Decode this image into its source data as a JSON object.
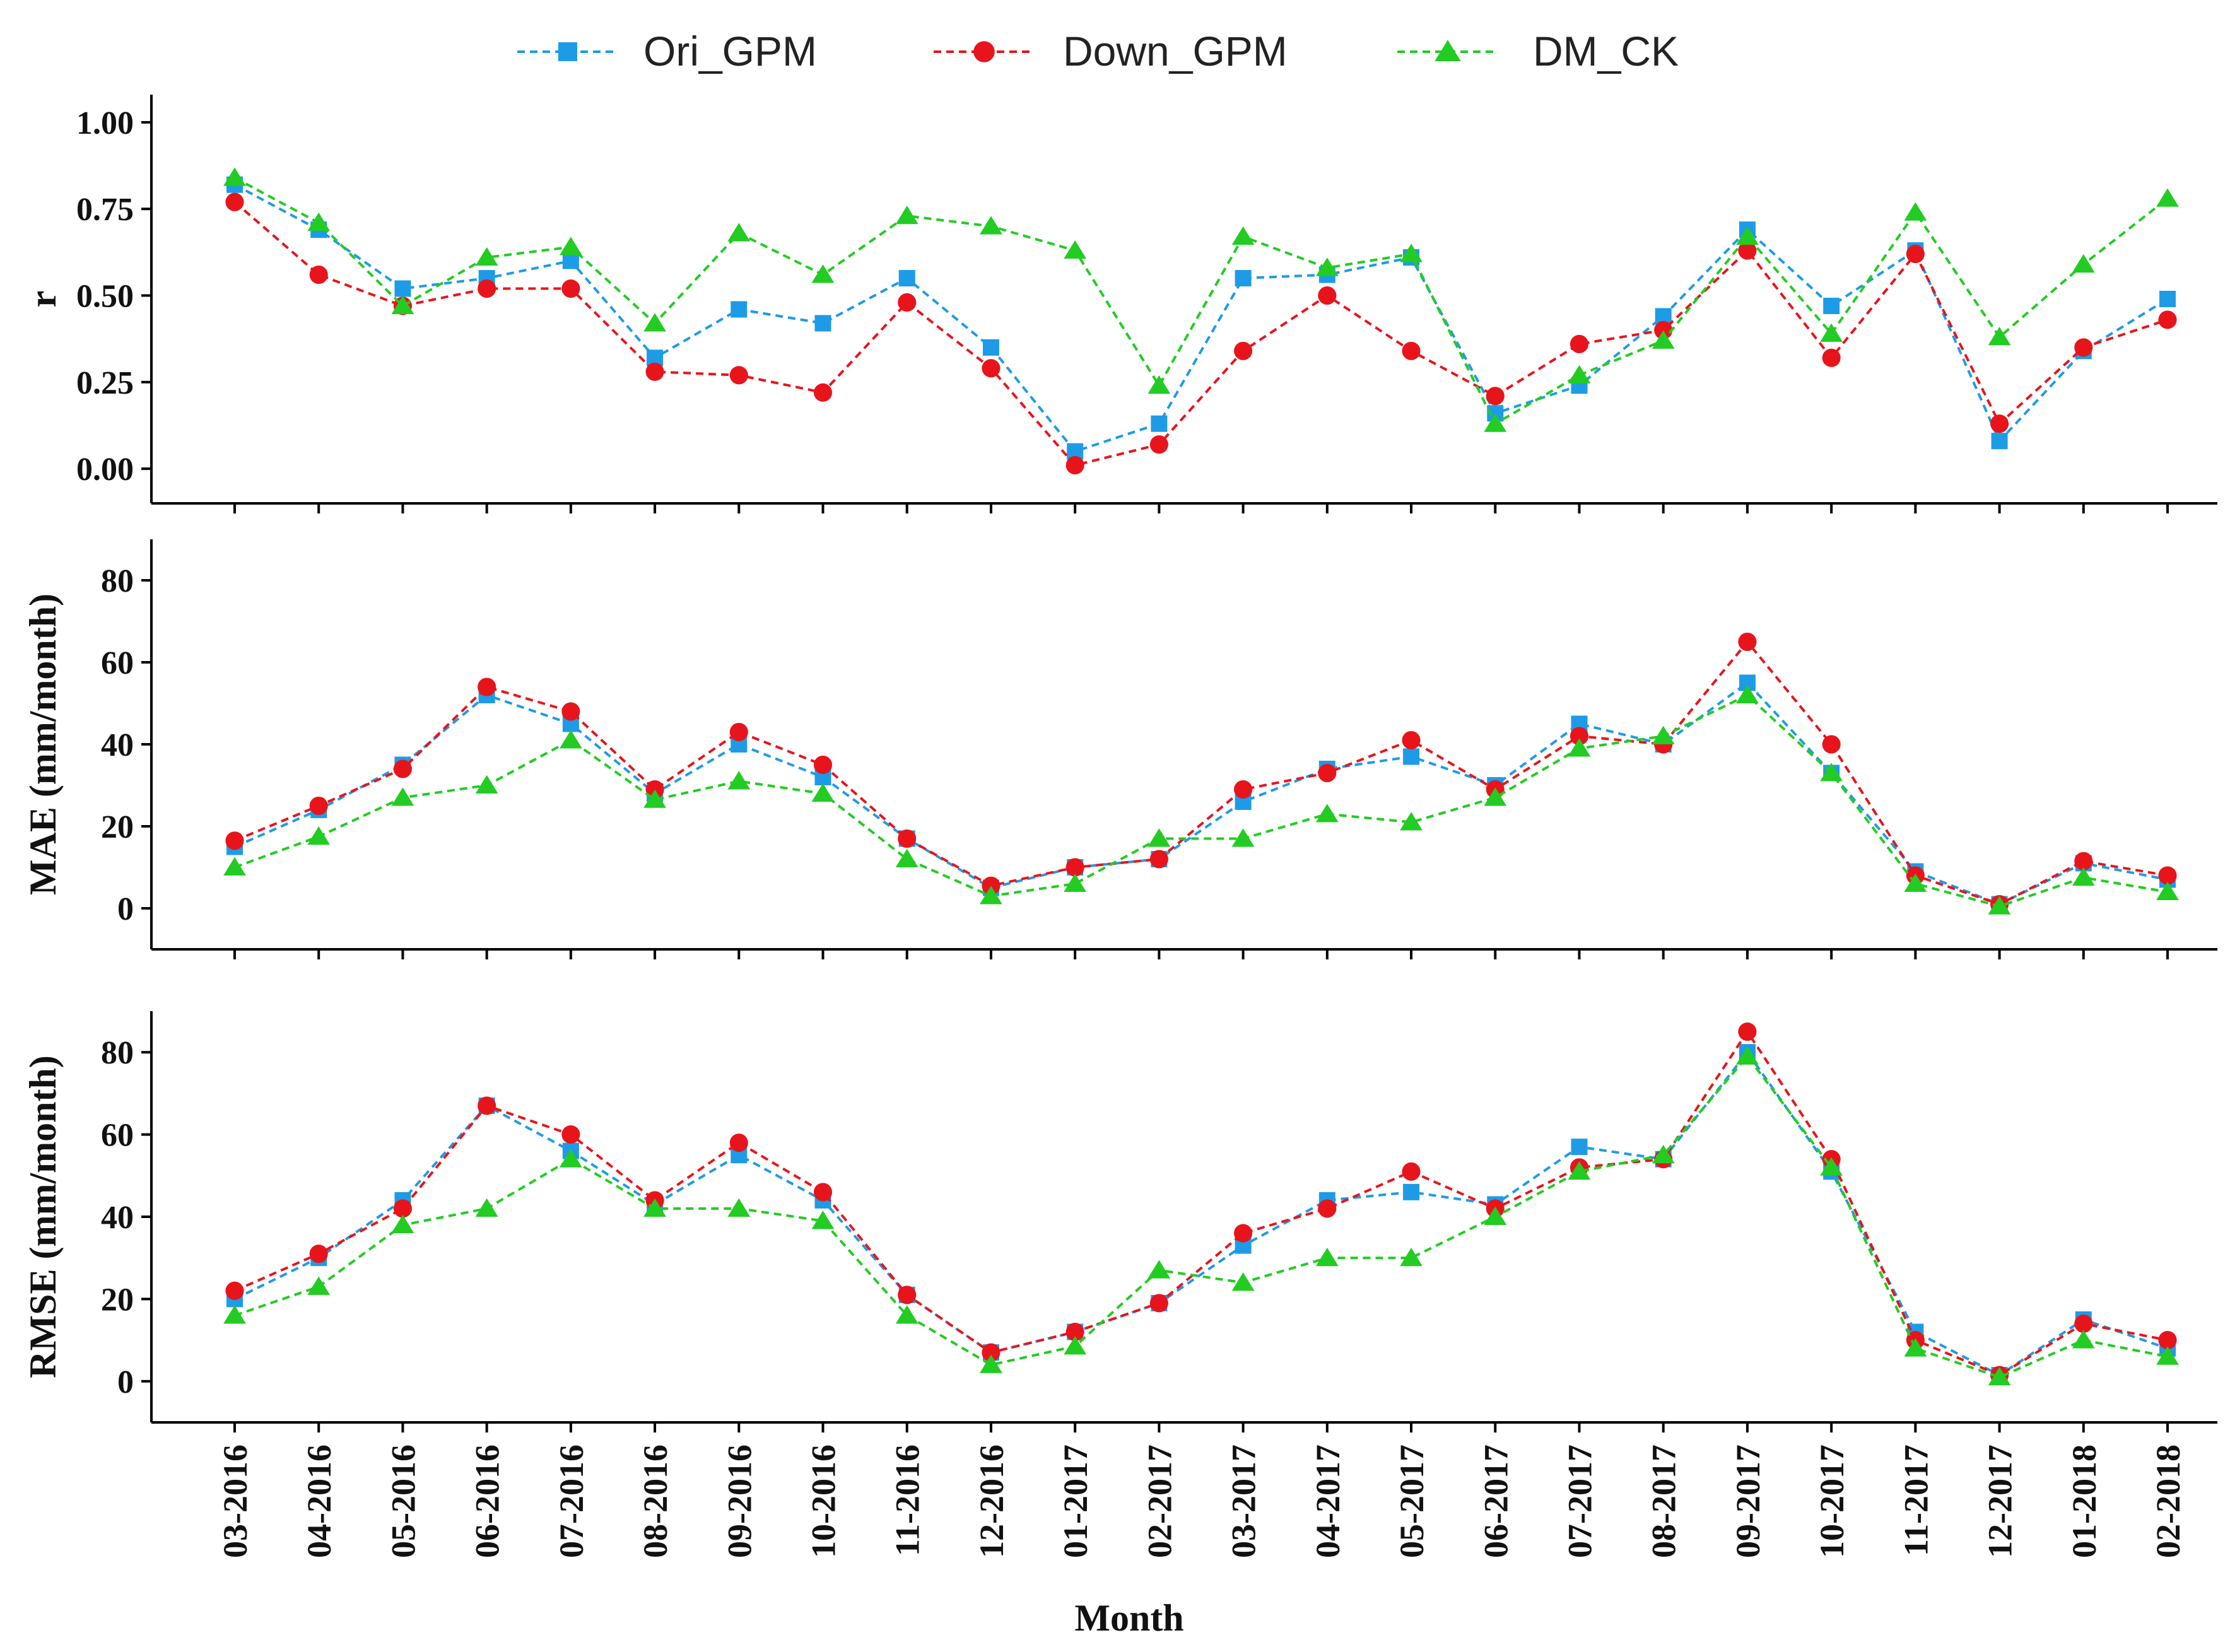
{
  "chart_data": {
    "type": "line",
    "categories": [
      "03-2016",
      "04-2016",
      "05-2016",
      "06-2016",
      "07-2016",
      "08-2016",
      "09-2016",
      "10-2016",
      "11-2016",
      "12-2016",
      "01-2017",
      "02-2017",
      "03-2017",
      "04-2017",
      "05-2017",
      "06-2017",
      "07-2017",
      "08-2017",
      "09-2017",
      "10-2017",
      "11-2017",
      "12-2017",
      "01-2018",
      "02-2018"
    ],
    "xlabel": "Month",
    "legend": {
      "position": "top-center",
      "entries": [
        {
          "name": "Ori_GPM",
          "color": "#1e9be6",
          "marker": "square"
        },
        {
          "name": "Down_GPM",
          "color": "#e8141c",
          "marker": "circle"
        },
        {
          "name": "DM_CK",
          "color": "#22cc22",
          "marker": "triangle"
        }
      ]
    },
    "panels": [
      {
        "id": "r",
        "ylabel": "r",
        "ylim": [
          -0.1,
          1.08
        ],
        "yticks": [
          "0.00",
          "0.25",
          "0.50",
          "0.75",
          "1.00"
        ],
        "ytick_values": [
          0,
          0.25,
          0.5,
          0.75,
          1.0
        ],
        "series": [
          {
            "name": "Ori_GPM",
            "values": [
              0.82,
              0.69,
              0.52,
              0.55,
              0.6,
              0.32,
              0.46,
              0.42,
              0.55,
              0.35,
              0.05,
              0.13,
              0.55,
              0.56,
              0.61,
              0.16,
              0.24,
              0.44,
              0.69,
              0.47,
              0.63,
              0.08,
              0.34,
              0.49
            ]
          },
          {
            "name": "Down_GPM",
            "values": [
              0.77,
              0.56,
              0.47,
              0.52,
              0.52,
              0.28,
              0.27,
              0.22,
              0.48,
              0.29,
              0.01,
              0.07,
              0.34,
              0.5,
              0.34,
              0.21,
              0.36,
              0.4,
              0.63,
              0.32,
              0.62,
              0.13,
              0.35,
              0.43
            ]
          },
          {
            "name": "DM_CK",
            "values": [
              0.84,
              0.71,
              0.47,
              0.61,
              0.64,
              0.42,
              0.68,
              0.56,
              0.73,
              0.7,
              0.63,
              0.24,
              0.67,
              0.58,
              0.62,
              0.13,
              0.27,
              0.37,
              0.67,
              0.39,
              0.74,
              0.38,
              0.59,
              0.78
            ]
          }
        ]
      },
      {
        "id": "mae",
        "ylabel": "MAE (mm/month)",
        "ylim": [
          -10,
          90
        ],
        "yticks": [
          "0",
          "20",
          "40",
          "60",
          "80"
        ],
        "ytick_values": [
          0,
          20,
          40,
          60,
          80
        ],
        "series": [
          {
            "name": "Ori_GPM",
            "values": [
              15,
              24,
              35,
              52,
              45,
              28,
              40,
              32,
              17,
              5,
              10,
              12,
              26,
              34,
              37,
              30,
              45,
              40,
              55,
              33,
              9,
              1,
              11,
              7
            ]
          },
          {
            "name": "Down_GPM",
            "values": [
              16.5,
              25,
              34,
              54,
              48,
              29,
              43,
              35,
              17,
              5.5,
              10,
              12,
              29,
              33,
              41,
              29,
              42,
              40,
              65,
              40,
              8,
              1,
              11.5,
              8
            ]
          },
          {
            "name": "DM_CK",
            "values": [
              10,
              17.5,
              27,
              30,
              41,
              26.5,
              31,
              28,
              12,
              3,
              6,
              17,
              17,
              23,
              21,
              27,
              39,
              42,
              52,
              33,
              6,
              0.5,
              7.5,
              4
            ]
          }
        ]
      },
      {
        "id": "rmse",
        "ylabel": "RMSE (mm/month)",
        "ylim": [
          -10,
          90
        ],
        "yticks": [
          "0",
          "20",
          "40",
          "60",
          "80"
        ],
        "ytick_values": [
          0,
          20,
          40,
          60,
          80
        ],
        "series": [
          {
            "name": "Ori_GPM",
            "values": [
              20,
              30,
              44,
              67,
              56,
              43,
              55,
              44,
              21,
              7,
              12,
              19,
              33,
              44,
              46,
              43,
              57,
              54,
              80,
              51,
              12,
              1.5,
              15,
              8
            ]
          },
          {
            "name": "Down_GPM",
            "values": [
              22,
              31,
              42,
              67,
              60,
              44,
              58,
              46,
              21,
              7,
              12,
              19,
              36,
              42,
              51,
              42,
              52,
              54,
              85,
              54,
              10,
              1.5,
              14,
              10
            ]
          },
          {
            "name": "DM_CK",
            "values": [
              16,
              23,
              38,
              42,
              54,
              42,
              42,
              39,
              16,
              4,
              8.5,
              27,
              24,
              30,
              30,
              40,
              51,
              55,
              79,
              52,
              8,
              1,
              10,
              6
            ]
          }
        ]
      }
    ]
  }
}
